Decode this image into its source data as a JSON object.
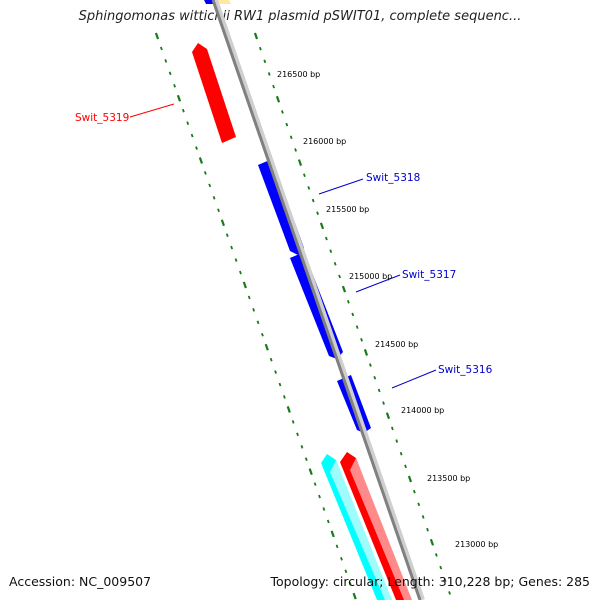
{
  "title": "Sphingomonas wittichii RW1 plasmid pSWIT01, complete sequenc...",
  "footer": {
    "accession": "Accession: NC_009507",
    "topology": "Topology: circular; Length: 310,228 bp; Genes: 285"
  },
  "colors": {
    "backbone": "#808080",
    "ticks": "#1a7a1a",
    "gene_red": "#ff0000",
    "gene_blue": "#0000ff",
    "gene_cyan": "#00ffff",
    "gene_yellow": "#ffe9a0",
    "label_red": "#ff0000",
    "label_blue": "#0000cc"
  },
  "scale_labels": [
    "216500 bp",
    "216000 bp",
    "215500 bp",
    "215000 bp",
    "214500 bp",
    "214000 bp",
    "213500 bp",
    "213000 bp"
  ],
  "gene_labels": [
    {
      "name": "Swit_5319",
      "color": "red"
    },
    {
      "name": "Swit_5318",
      "color": "blue"
    },
    {
      "name": "Swit_5317",
      "color": "blue"
    },
    {
      "name": "Swit_5316",
      "color": "blue"
    }
  ]
}
